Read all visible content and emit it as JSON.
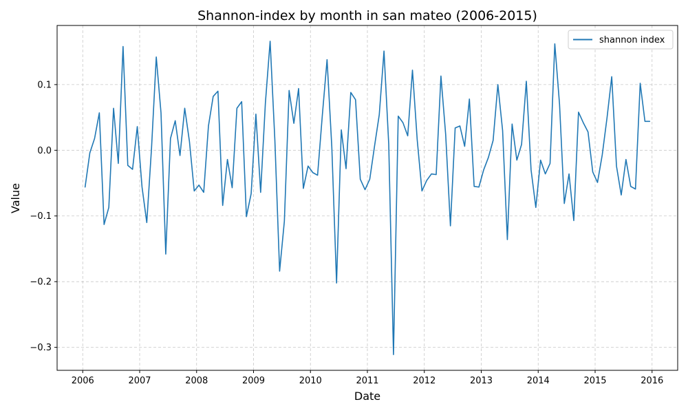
{
  "chart_data": {
    "type": "line",
    "title": "Shannon-index by month in san mateo (2006-2015)",
    "xlabel": "Date",
    "ylabel": "Value",
    "grid": true,
    "legend_position": "top-right",
    "xlim": [
      2005.55,
      2016.45
    ],
    "ylim": [
      -0.335,
      0.19
    ],
    "x_ticks": [
      2006,
      2007,
      2008,
      2009,
      2010,
      2011,
      2012,
      2013,
      2014,
      2015,
      2016
    ],
    "x_tick_labels": [
      "2006",
      "2007",
      "2008",
      "2009",
      "2010",
      "2011",
      "2012",
      "2013",
      "2014",
      "2015",
      "2016"
    ],
    "y_ticks": [
      -0.3,
      -0.2,
      -0.1,
      0.0,
      0.1
    ],
    "y_tick_labels": [
      "−0.3",
      "−0.2",
      "−0.1",
      "0.0",
      "0.1"
    ],
    "series": [
      {
        "name": "shannon index",
        "color": "#1f77b4",
        "start_year": 2006,
        "start_month": 1,
        "values": [
          -0.056,
          -0.004,
          0.018,
          0.057,
          -0.113,
          -0.087,
          0.064,
          -0.02,
          0.158,
          -0.023,
          -0.029,
          0.036,
          -0.056,
          -0.11,
          0.003,
          0.142,
          0.057,
          -0.158,
          0.018,
          0.045,
          -0.008,
          0.064,
          0.013,
          -0.062,
          -0.053,
          -0.064,
          0.037,
          0.082,
          0.09,
          -0.084,
          -0.014,
          -0.057,
          0.064,
          0.074,
          -0.101,
          -0.066,
          0.055,
          -0.064,
          0.072,
          0.166,
          0.015,
          -0.184,
          -0.108,
          0.091,
          0.041,
          0.094,
          -0.058,
          -0.024,
          -0.034,
          -0.038,
          0.053,
          0.138,
          0.005,
          -0.202,
          0.031,
          -0.028,
          0.088,
          0.077,
          -0.044,
          -0.06,
          -0.044,
          0.006,
          0.054,
          0.151,
          0.009,
          -0.311,
          0.052,
          0.042,
          0.022,
          0.122,
          0.016,
          -0.062,
          -0.046,
          -0.036,
          -0.037,
          0.113,
          0.024,
          -0.115,
          0.034,
          0.037,
          0.006,
          0.078,
          -0.055,
          -0.056,
          -0.03,
          -0.011,
          0.015,
          0.1,
          0.03,
          -0.136,
          0.04,
          -0.015,
          0.009,
          0.105,
          -0.03,
          -0.087,
          -0.015,
          -0.036,
          -0.02,
          0.162,
          0.07,
          -0.081,
          -0.036,
          -0.107,
          0.058,
          0.042,
          0.028,
          -0.033,
          -0.049,
          -0.007,
          0.049,
          0.112,
          -0.024,
          -0.068,
          -0.014,
          -0.055,
          -0.059,
          0.102,
          0.044,
          0.044
        ]
      }
    ]
  }
}
